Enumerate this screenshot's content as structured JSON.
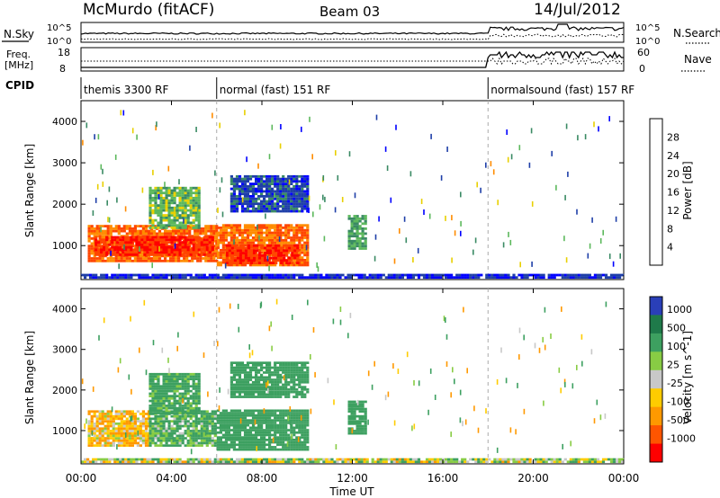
{
  "header": {
    "station": "McMurdo (fitACF)",
    "beam": "Beam 03",
    "date": "14/Jul/2012"
  },
  "side_labels": {
    "nsky": "N.Sky",
    "nsearch": "N.Search",
    "freq_line1": "Freq.",
    "freq_line2": "[MHz]",
    "nave": "Nave",
    "cpid": "CPID",
    "noise_tick_top_left": "10^5",
    "noise_tick_bottom_left": "10^0",
    "noise_tick_top_right": "10^5",
    "noise_tick_bottom_right": "10^0",
    "freq_tick_top": "18",
    "freq_tick_bottom": "8",
    "nave_tick_top": "60",
    "nave_tick_bottom": "0"
  },
  "cpid_segments": [
    {
      "label": "themis 3300 RF",
      "start_hour": 0,
      "end_hour": 6
    },
    {
      "label": "normal (fast) 151 RF",
      "start_hour": 6,
      "end_hour": 18
    },
    {
      "label": "normalsound (fast) 157 RF",
      "start_hour": 18,
      "end_hour": 24
    }
  ],
  "x_axis": {
    "label": "Time UT",
    "ticks": [
      "00:00",
      "04:00",
      "08:00",
      "12:00",
      "16:00",
      "20:00",
      "00:00"
    ],
    "tick_hours": [
      0,
      4,
      8,
      12,
      16,
      20,
      24
    ],
    "range_hours": [
      0,
      24
    ]
  },
  "power_colorbar": {
    "label": "Power [dB]",
    "ticks": [
      "28",
      "24",
      "20",
      "16",
      "12",
      "8",
      "4"
    ],
    "colors": [
      "#0000ff",
      "#1f3fa8",
      "#3a8a64",
      "#5cb85c",
      "#e8d000",
      "#ff8c00",
      "#ff4500",
      "#ff0000"
    ]
  },
  "velocity_colorbar": {
    "label": "Velocity [m s^-1]",
    "ticks": [
      "1000",
      "500",
      "100",
      "25",
      "-25",
      "-100",
      "-500",
      "-1000"
    ],
    "colors": [
      "#2a3fb8",
      "#1f7a4a",
      "#3da060",
      "#88cc44",
      "#c8c8c8",
      "#ffcc00",
      "#ff9900",
      "#ff5500",
      "#ff0000"
    ]
  },
  "chart_data": [
    {
      "type": "heatmap",
      "title": "",
      "xlabel": "Time UT",
      "ylabel": "Slant Range [km]",
      "xlim": [
        0,
        24
      ],
      "ylim": [
        180,
        4500
      ],
      "yticks": [
        "1000",
        "2000",
        "3000",
        "4000"
      ],
      "ytick_values": [
        1000,
        2000,
        3000,
        4000
      ],
      "colorbar": "Power [dB]",
      "grid": false,
      "regions": [
        {
          "t0": 0.3,
          "t1": 6.0,
          "r0": 600,
          "r1": 1450,
          "value_db": 26
        },
        {
          "t0": 0.6,
          "t1": 5.8,
          "r0": 750,
          "r1": 1200,
          "value_db": 30
        },
        {
          "t0": 3.0,
          "t1": 5.2,
          "r0": 1400,
          "r1": 2400,
          "value_db": 16
        },
        {
          "t0": 6.0,
          "t1": 10.0,
          "r0": 500,
          "r1": 1500,
          "value_db": 26
        },
        {
          "t0": 6.4,
          "t1": 9.6,
          "r0": 550,
          "r1": 1000,
          "value_db": 30
        },
        {
          "t0": 6.6,
          "t1": 10.0,
          "r0": 1800,
          "r1": 2700,
          "value_db": 8
        },
        {
          "t0": 11.8,
          "t1": 12.6,
          "r0": 900,
          "r1": 1700,
          "value_db": 14
        },
        {
          "t0": 0.0,
          "t1": 24.0,
          "r0": 200,
          "r1": 320,
          "value_db": 6
        }
      ]
    },
    {
      "type": "heatmap",
      "title": "",
      "xlabel": "Time UT",
      "ylabel": "Slant Range [km]",
      "xlim": [
        0,
        24
      ],
      "ylim": [
        180,
        4500
      ],
      "yticks": [
        "1000",
        "2000",
        "3000",
        "4000"
      ],
      "ytick_values": [
        1000,
        2000,
        3000,
        4000
      ],
      "colorbar": "Velocity [m s^-1]",
      "grid": false,
      "regions": [
        {
          "t0": 0.3,
          "t1": 3.0,
          "r0": 600,
          "r1": 1450,
          "value_ms": -100
        },
        {
          "t0": 3.0,
          "t1": 6.0,
          "r0": 600,
          "r1": 1450,
          "value_ms": 150
        },
        {
          "t0": 3.0,
          "t1": 5.2,
          "r0": 1400,
          "r1": 2400,
          "value_ms": 200
        },
        {
          "t0": 6.0,
          "t1": 10.0,
          "r0": 500,
          "r1": 1500,
          "value_ms": 250
        },
        {
          "t0": 6.6,
          "t1": 10.0,
          "r0": 1800,
          "r1": 2700,
          "value_ms": 300
        },
        {
          "t0": 11.8,
          "t1": 12.6,
          "r0": 900,
          "r1": 1700,
          "value_ms": 250
        },
        {
          "t0": 0.0,
          "t1": 24.0,
          "r0": 200,
          "r1": 320,
          "value_ms": 20
        }
      ]
    }
  ]
}
